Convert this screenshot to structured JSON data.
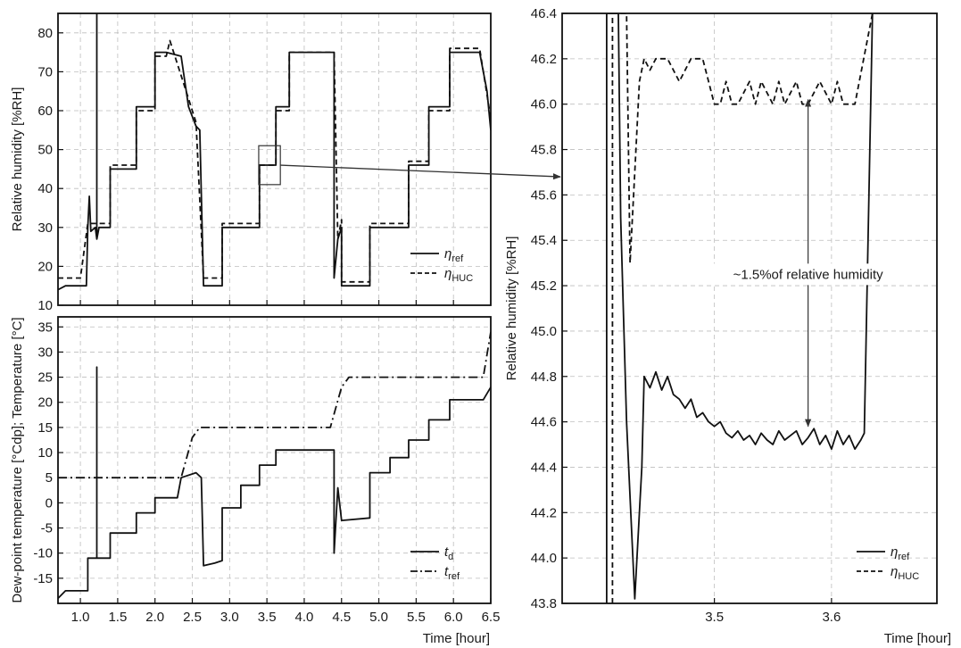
{
  "chart_data": [
    {
      "id": "top-left",
      "type": "line",
      "xlabel": "",
      "ylabel": "Relative humidity [%RH]",
      "xlim": [
        0.7,
        6.5
      ],
      "ylim": [
        10,
        85
      ],
      "xticks": [
        1.0,
        1.5,
        2.0,
        2.5,
        3.0,
        3.5,
        4.0,
        4.5,
        5.0,
        5.5,
        6.0,
        6.5
      ],
      "yticks": [
        10,
        20,
        30,
        40,
        50,
        60,
        70,
        80
      ],
      "grid": true,
      "legend_position": "bottom-right",
      "legend": [
        {
          "sym": "η",
          "sub": "ref",
          "style": "solid"
        },
        {
          "sym": "η",
          "sub": "HUC",
          "style": "dashed"
        }
      ],
      "series": [
        {
          "style": "solid",
          "x": [
            0.7,
            0.8,
            1.0,
            1.08,
            1.1,
            1.12,
            1.14,
            1.2,
            1.22,
            1.22,
            1.22,
            1.25,
            1.4,
            1.4,
            1.5,
            1.5,
            1.75,
            1.75,
            1.85,
            1.85,
            2.0,
            2.0,
            2.15,
            2.15,
            2.35,
            2.45,
            2.55,
            2.55,
            2.6,
            2.65,
            2.8,
            2.9,
            2.9,
            3.2,
            3.2,
            3.4,
            3.4,
            3.62,
            3.62,
            3.8,
            3.8,
            4.07,
            4.07,
            4.3,
            4.4,
            4.4,
            4.45,
            4.5,
            4.5,
            4.55,
            4.62,
            4.88,
            4.88,
            5.15,
            5.15,
            5.4,
            5.4,
            5.67,
            5.67,
            5.95,
            5.95,
            6.2,
            6.2,
            6.35,
            6.45,
            6.5
          ],
          "y": [
            14,
            15,
            15,
            15,
            30,
            38,
            29,
            30,
            27,
            85,
            27,
            30,
            30,
            45,
            45,
            45,
            45,
            61,
            61,
            61,
            61,
            75,
            75,
            75,
            74,
            61,
            56,
            56,
            55,
            15,
            15,
            15,
            30,
            30,
            30,
            30,
            46,
            46,
            61,
            61,
            75,
            75,
            75,
            75,
            75,
            17,
            27,
            30,
            15,
            15,
            15,
            15,
            30,
            30,
            30,
            30,
            46,
            46,
            61,
            61,
            75,
            75,
            75,
            75,
            65,
            55
          ]
        },
        {
          "style": "dashed",
          "x": [
            0.7,
            1.0,
            1.1,
            1.12,
            1.25,
            1.4,
            1.4,
            1.75,
            1.75,
            2.0,
            2.0,
            2.15,
            2.2,
            2.4,
            2.55,
            2.65,
            2.9,
            2.9,
            3.2,
            3.4,
            3.4,
            3.62,
            3.62,
            3.8,
            3.8,
            4.07,
            4.07,
            4.3,
            4.4,
            4.45,
            4.5,
            4.5,
            4.88,
            4.88,
            5.15,
            5.4,
            5.4,
            5.67,
            5.67,
            5.95,
            5.95,
            6.2,
            6.2,
            6.35,
            6.5
          ],
          "y": [
            17,
            17,
            31,
            31,
            31,
            31,
            46,
            46,
            60,
            60,
            74,
            74,
            78,
            66,
            57,
            17,
            17,
            31,
            31,
            31,
            46,
            46,
            60,
            60,
            75,
            75,
            75,
            75,
            75,
            27,
            32,
            16,
            16,
            31,
            31,
            31,
            47,
            47,
            60,
            60,
            76,
            76,
            76,
            76,
            58
          ]
        }
      ],
      "annotations": [
        {
          "type": "zoom-box",
          "x": [
            3.39,
            3.68
          ],
          "y": [
            41,
            51
          ]
        }
      ]
    },
    {
      "id": "bottom-left",
      "type": "line",
      "xlabel": "Time [hour]",
      "ylabel": "Dew-point temperature [°Cdp]; Temperature [°C]",
      "xlim": [
        0.7,
        6.5
      ],
      "ylim": [
        -20,
        37
      ],
      "xticks": [
        1.0,
        1.5,
        2.0,
        2.5,
        3.0,
        3.5,
        4.0,
        4.5,
        5.0,
        5.5,
        6.0,
        6.5
      ],
      "yticks": [
        -15,
        -10,
        -5,
        0,
        5,
        10,
        15,
        20,
        25,
        30,
        35
      ],
      "grid": true,
      "legend_position": "bottom-right",
      "legend": [
        {
          "sym": "t",
          "sub": "d",
          "style": "solid"
        },
        {
          "sym": "t",
          "sub": "ref",
          "style": "dashdot"
        }
      ],
      "series": [
        {
          "style": "solid",
          "x": [
            0.7,
            0.8,
            1.1,
            1.1,
            1.22,
            1.22,
            1.22,
            1.4,
            1.4,
            1.75,
            1.75,
            2.0,
            2.0,
            2.3,
            2.35,
            2.55,
            2.62,
            2.65,
            2.8,
            2.9,
            2.9,
            3.15,
            3.15,
            3.4,
            3.4,
            3.62,
            3.62,
            3.95,
            3.95,
            4.4,
            4.4,
            4.45,
            4.5,
            4.5,
            4.88,
            4.88,
            5.15,
            5.15,
            5.4,
            5.4,
            5.67,
            5.67,
            5.95,
            5.95,
            6.4,
            6.5
          ],
          "y": [
            -19,
            -17.5,
            -17.5,
            -11,
            -11,
            27,
            -11,
            -11,
            -6,
            -6,
            -2,
            -2,
            1,
            1,
            5,
            6,
            5,
            -12.5,
            -12,
            -11.5,
            -1,
            -1,
            3.5,
            3.5,
            7.5,
            7.5,
            10.5,
            10.5,
            10.5,
            10.5,
            -10,
            3,
            -3.5,
            -3.5,
            -3,
            6,
            6,
            9,
            9,
            12.5,
            12.5,
            16.5,
            16.5,
            20.5,
            20.5,
            23
          ]
        },
        {
          "style": "dashdot",
          "x": [
            0.7,
            2.35,
            2.5,
            2.6,
            4.35,
            4.5,
            4.6,
            6.4,
            6.5
          ],
          "y": [
            5,
            5,
            13,
            15,
            15,
            23,
            25,
            25,
            34
          ]
        }
      ]
    },
    {
      "id": "right",
      "type": "line",
      "xlabel": "Time [hour]",
      "ylabel": "Relative humidity [%RH]",
      "xlim": [
        3.37,
        3.69
      ],
      "ylim": [
        43.8,
        46.4
      ],
      "xticks": [
        3.5,
        3.6
      ],
      "yticks": [
        43.8,
        44.0,
        44.2,
        44.4,
        44.6,
        44.8,
        45.0,
        45.2,
        45.4,
        45.6,
        45.8,
        46.0,
        46.2,
        46.4
      ],
      "grid": true,
      "legend_position": "bottom-right",
      "legend": [
        {
          "sym": "η",
          "sub": "ref",
          "style": "solid"
        },
        {
          "sym": "η",
          "sub": "HUC",
          "style": "dashed"
        }
      ],
      "series": [
        {
          "style": "solid",
          "x": [
            3.408,
            3.408,
            3.418,
            3.42,
            3.425,
            3.432,
            3.438,
            3.44,
            3.445,
            3.45,
            3.455,
            3.46,
            3.465,
            3.47,
            3.475,
            3.48,
            3.485,
            3.49,
            3.495,
            3.5,
            3.505,
            3.51,
            3.515,
            3.52,
            3.525,
            3.53,
            3.535,
            3.54,
            3.545,
            3.55,
            3.555,
            3.56,
            3.565,
            3.57,
            3.575,
            3.58,
            3.585,
            3.59,
            3.595,
            3.6,
            3.605,
            3.61,
            3.615,
            3.62,
            3.625,
            3.628,
            3.635
          ],
          "y": [
            43.8,
            46.4,
            46.4,
            45.5,
            44.6,
            43.82,
            44.4,
            44.8,
            44.75,
            44.82,
            44.74,
            44.8,
            44.72,
            44.7,
            44.66,
            44.7,
            44.62,
            44.64,
            44.6,
            44.58,
            44.6,
            44.55,
            44.53,
            44.56,
            44.52,
            44.54,
            44.5,
            44.55,
            44.52,
            44.5,
            44.56,
            44.52,
            44.54,
            44.56,
            44.5,
            44.53,
            44.57,
            44.5,
            44.54,
            44.48,
            44.56,
            44.5,
            44.54,
            44.48,
            44.52,
            44.55,
            46.4
          ]
        },
        {
          "style": "dashed",
          "x": [
            3.413,
            3.413,
            3.425,
            3.428,
            3.432,
            3.436,
            3.44,
            3.445,
            3.45,
            3.46,
            3.47,
            3.48,
            3.49,
            3.495,
            3.5,
            3.505,
            3.51,
            3.515,
            3.52,
            3.53,
            3.535,
            3.54,
            3.55,
            3.555,
            3.56,
            3.57,
            3.575,
            3.58,
            3.59,
            3.6,
            3.605,
            3.61,
            3.62,
            3.635
          ],
          "y": [
            43.8,
            46.4,
            46.4,
            45.3,
            45.7,
            46.1,
            46.2,
            46.15,
            46.2,
            46.2,
            46.1,
            46.2,
            46.2,
            46.1,
            46.0,
            46.0,
            46.1,
            46.0,
            46.0,
            46.1,
            46.0,
            46.1,
            46.0,
            46.1,
            46.0,
            46.1,
            46.0,
            46.0,
            46.1,
            46.0,
            46.1,
            46.0,
            46.0,
            46.4
          ]
        }
      ],
      "annotations": [
        {
          "type": "double-arrow",
          "x": 3.58,
          "y": [
            44.58,
            46.02
          ]
        },
        {
          "type": "text",
          "text": "~1.5%of relative humidity",
          "x": 3.58,
          "y": 45.25
        }
      ]
    }
  ]
}
